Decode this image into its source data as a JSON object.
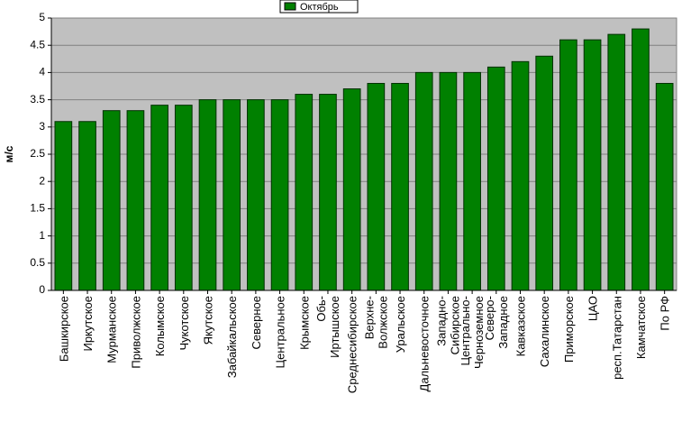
{
  "chart_data": {
    "type": "bar",
    "y_label": "м/с",
    "legend": "top",
    "series": [
      {
        "name": "Октябрь",
        "color": "#008000",
        "values": [
          3.1,
          3.1,
          3.3,
          3.3,
          3.4,
          3.4,
          3.5,
          3.5,
          3.5,
          3.5,
          3.6,
          3.6,
          3.7,
          3.8,
          3.8,
          4.0,
          4.0,
          4.0,
          4.1,
          4.2,
          4.3,
          4.6,
          4.6,
          4.7,
          4.8,
          3.8
        ]
      }
    ],
    "categories": [
      "Башкирское",
      "Иркутское",
      "Мурманское",
      "Приволжское",
      "Колымское",
      "Чукотское",
      "Якутское",
      "Забайкальское",
      "Северное",
      "Центральное",
      "Крымское",
      "Обь-Иртышское",
      "Среднесибирское",
      "Верхне-Волжское",
      "Уральское",
      "Дальневосточное",
      "Западно-Сибирское",
      "Центрально-Черноземное",
      "Северо-Западное",
      "Кавказское",
      "Сахалинское",
      "Приморское",
      "ЦАО",
      "респ.Татарстан",
      "Камчатское",
      "По РФ"
    ],
    "ylim": [
      0,
      5
    ],
    "yticks": [
      0,
      0.5,
      1,
      1.5,
      2,
      2.5,
      3,
      3.5,
      4,
      4.5,
      5
    ],
    "grid": true
  }
}
